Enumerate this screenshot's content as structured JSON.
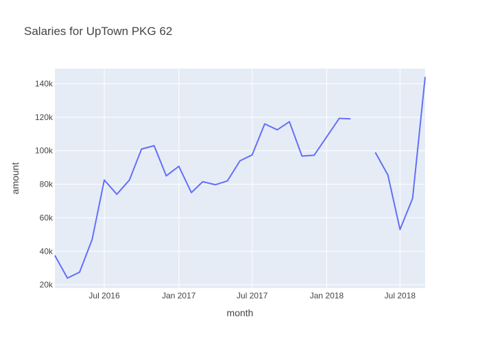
{
  "chart_data": {
    "type": "line",
    "title": "Salaries for UpTown PKG 62",
    "xlabel": "month",
    "ylabel": "amount",
    "x_axis_type": "date",
    "xlim": [
      "2016-03-01",
      "2018-09-01"
    ],
    "ylim": [
      18000,
      149000
    ],
    "x_ticks": [
      {
        "value": "2016-07-01",
        "label": "Jul 2016"
      },
      {
        "value": "2017-01-01",
        "label": "Jan 2017"
      },
      {
        "value": "2017-07-01",
        "label": "Jul 2017"
      },
      {
        "value": "2018-01-01",
        "label": "Jan 2018"
      },
      {
        "value": "2018-07-01",
        "label": "Jul 2018"
      }
    ],
    "y_ticks": [
      {
        "value": 20000,
        "label": "20k"
      },
      {
        "value": 40000,
        "label": "40k"
      },
      {
        "value": 60000,
        "label": "60k"
      },
      {
        "value": 80000,
        "label": "80k"
      },
      {
        "value": 100000,
        "label": "100k"
      },
      {
        "value": 120000,
        "label": "120k"
      },
      {
        "value": 140000,
        "label": "140k"
      }
    ],
    "grid": true,
    "colors": {
      "line": "#636efa",
      "plot_bg": "#e5ecf6",
      "grid": "#ffffff"
    },
    "series": [
      {
        "points": [
          {
            "x": "2016-03-01",
            "y": 37500
          },
          {
            "x": "2016-04-01",
            "y": 24000
          },
          {
            "x": "2016-05-01",
            "y": 27500
          },
          {
            "x": "2016-06-01",
            "y": 47000
          },
          {
            "x": "2016-07-01",
            "y": 82500
          },
          {
            "x": "2016-08-01",
            "y": 74000
          },
          {
            "x": "2016-09-01",
            "y": 82500
          },
          {
            "x": "2016-10-01",
            "y": 101000
          },
          {
            "x": "2016-11-01",
            "y": 103000
          },
          {
            "x": "2016-12-01",
            "y": 85000
          },
          {
            "x": "2017-01-01",
            "y": 90700
          },
          {
            "x": "2017-02-01",
            "y": 75000
          },
          {
            "x": "2017-03-01",
            "y": 81500
          },
          {
            "x": "2017-04-01",
            "y": 79700
          },
          {
            "x": "2017-05-01",
            "y": 82000
          },
          {
            "x": "2017-06-01",
            "y": 94000
          },
          {
            "x": "2017-07-01",
            "y": 97500
          },
          {
            "x": "2017-08-01",
            "y": 116000
          },
          {
            "x": "2017-09-01",
            "y": 112500
          },
          {
            "x": "2017-10-01",
            "y": 117300
          },
          {
            "x": "2017-11-01",
            "y": 96800
          },
          {
            "x": "2017-12-01",
            "y": 97300
          },
          {
            "x": "2018-02-01",
            "y": 119300
          },
          {
            "x": "2018-03-01",
            "y": 119000
          },
          {
            "x": "2018-04-01",
            "y": null
          },
          {
            "x": "2018-05-01",
            "y": 99000
          },
          {
            "x": "2018-06-01",
            "y": 85500
          },
          {
            "x": "2018-07-01",
            "y": 53000
          },
          {
            "x": "2018-08-01",
            "y": 71500
          },
          {
            "x": "2018-09-01",
            "y": 144000
          }
        ]
      }
    ]
  }
}
